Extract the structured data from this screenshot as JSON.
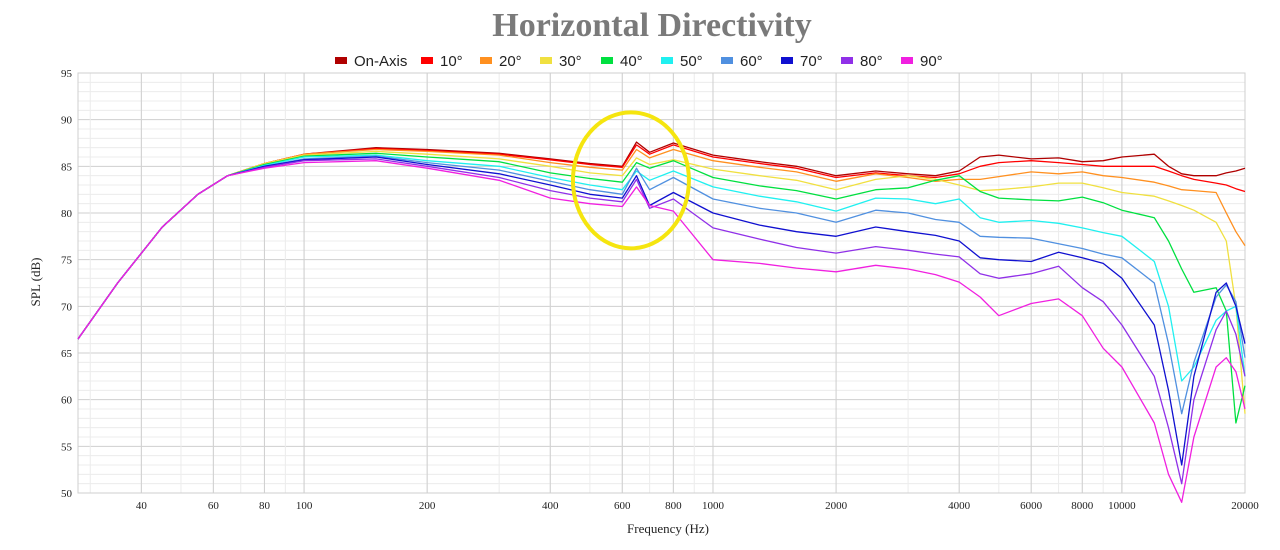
{
  "chart_data": {
    "type": "line",
    "title": "Horizontal Directivity",
    "xlabel": "Frequency (Hz)",
    "ylabel": "SPL (dB)",
    "xscale": "log",
    "xlim": [
      28,
      20000
    ],
    "ylim": [
      50,
      95
    ],
    "xticks": [
      40,
      60,
      80,
      100,
      200,
      400,
      600,
      800,
      1000,
      2000,
      4000,
      6000,
      8000,
      10000,
      20000
    ],
    "xtick_labels": [
      "40",
      "60",
      "80",
      "100",
      "200",
      "400",
      "600",
      "800",
      "1000",
      "2000",
      "4000",
      "6000",
      "8000",
      "10000",
      "20000"
    ],
    "yticks": [
      50,
      55,
      60,
      65,
      70,
      75,
      80,
      85,
      90,
      95
    ],
    "ytick_labels": [
      "50",
      "55",
      "60",
      "65",
      "70",
      "75",
      "80",
      "85",
      "90",
      "95"
    ],
    "grid": true,
    "legend_position": "top-center",
    "annotation": {
      "shape": "ellipse",
      "color": "#f5e50f",
      "center_freq": 630,
      "center_db": 83.5
    },
    "x": [
      28,
      35,
      45,
      55,
      65,
      80,
      100,
      150,
      200,
      300,
      400,
      500,
      600,
      650,
      700,
      800,
      1000,
      1300,
      1600,
      2000,
      2500,
      3000,
      3500,
      4000,
      4500,
      5000,
      6000,
      7000,
      8000,
      9000,
      10000,
      12000,
      13000,
      14000,
      15000,
      17000,
      18000,
      19000,
      20000
    ],
    "series": [
      {
        "name": "On-Axis",
        "color": "#b00000",
        "values": [
          66.5,
          72.5,
          78.5,
          82.0,
          84.0,
          85.3,
          86.3,
          87.0,
          86.8,
          86.4,
          85.8,
          85.3,
          85.0,
          87.6,
          86.5,
          87.5,
          86.2,
          85.5,
          85.0,
          84.0,
          84.5,
          84.2,
          84.0,
          84.5,
          86.0,
          86.2,
          85.8,
          85.9,
          85.5,
          85.6,
          86.0,
          86.3,
          85.0,
          84.2,
          84.0,
          84.0,
          84.3,
          84.5,
          84.8
        ]
      },
      {
        "name": "10°",
        "color": "#ff0000",
        "values": [
          66.5,
          72.5,
          78.5,
          82.0,
          84.0,
          85.3,
          86.3,
          86.9,
          86.7,
          86.3,
          85.7,
          85.2,
          84.9,
          87.3,
          86.3,
          87.3,
          86.0,
          85.3,
          84.8,
          83.8,
          84.3,
          84.0,
          83.8,
          84.2,
          85.0,
          85.4,
          85.6,
          85.4,
          85.2,
          85.0,
          85.0,
          85.0,
          84.5,
          84.0,
          83.6,
          83.2,
          83.0,
          82.6,
          82.3
        ]
      },
      {
        "name": "20°",
        "color": "#ff9020",
        "values": [
          66.5,
          72.5,
          78.5,
          82.0,
          84.0,
          85.3,
          86.3,
          86.8,
          86.6,
          86.2,
          85.4,
          84.9,
          84.6,
          86.8,
          85.9,
          86.8,
          85.6,
          84.9,
          84.4,
          83.4,
          84.2,
          83.8,
          83.4,
          83.6,
          83.6,
          83.9,
          84.4,
          84.2,
          84.4,
          84.0,
          83.8,
          83.3,
          82.9,
          82.5,
          82.4,
          82.2,
          80.0,
          78.0,
          76.5
        ]
      },
      {
        "name": "30°",
        "color": "#f0e040",
        "values": [
          66.5,
          72.5,
          78.5,
          82.0,
          84.0,
          85.3,
          86.2,
          86.6,
          86.3,
          85.8,
          85.0,
          84.3,
          84.0,
          85.9,
          85.2,
          85.7,
          84.7,
          84.0,
          83.5,
          82.5,
          83.6,
          84.0,
          83.6,
          83.0,
          82.4,
          82.5,
          82.8,
          83.2,
          83.2,
          82.7,
          82.2,
          81.8,
          81.3,
          80.8,
          80.3,
          79.0,
          77.0,
          70.0,
          58.5
        ]
      },
      {
        "name": "40°",
        "color": "#00e040",
        "values": [
          66.5,
          72.5,
          78.5,
          82.0,
          84.0,
          85.2,
          86.1,
          86.4,
          86.0,
          85.5,
          84.3,
          83.7,
          83.3,
          85.4,
          84.8,
          85.6,
          83.8,
          82.9,
          82.4,
          81.5,
          82.5,
          82.7,
          83.5,
          84.0,
          82.3,
          81.6,
          81.4,
          81.3,
          81.7,
          81.1,
          80.3,
          79.5,
          77.0,
          74.0,
          71.5,
          72.0,
          69.5,
          57.5,
          61.5
        ]
      },
      {
        "name": "50°",
        "color": "#20f0f0",
        "values": [
          66.5,
          72.5,
          78.5,
          82.0,
          84.0,
          85.1,
          86.0,
          86.2,
          85.6,
          85.0,
          83.8,
          83.0,
          82.5,
          84.5,
          83.5,
          84.5,
          82.8,
          81.8,
          81.2,
          80.2,
          81.6,
          81.5,
          81.0,
          81.5,
          79.5,
          79.0,
          79.2,
          78.9,
          78.4,
          77.9,
          77.5,
          74.8,
          70.0,
          62.0,
          63.5,
          68.5,
          69.5,
          70.0,
          62.5
        ]
      },
      {
        "name": "60°",
        "color": "#5090e0",
        "values": [
          66.5,
          72.5,
          78.5,
          82.0,
          84.0,
          85.0,
          85.8,
          86.1,
          85.4,
          84.6,
          83.4,
          82.5,
          82.0,
          84.8,
          82.5,
          83.8,
          81.5,
          80.5,
          80.0,
          79.0,
          80.3,
          80.0,
          79.3,
          79.0,
          77.5,
          77.4,
          77.3,
          76.7,
          76.2,
          75.6,
          75.2,
          72.5,
          66.0,
          58.5,
          64.0,
          71.0,
          72.3,
          70.5,
          64.5
        ]
      },
      {
        "name": "70°",
        "color": "#1010d0",
        "values": [
          66.5,
          72.5,
          78.5,
          82.0,
          84.0,
          85.0,
          85.7,
          86.0,
          85.2,
          84.2,
          83.0,
          82.0,
          81.6,
          84.0,
          80.8,
          82.2,
          80.0,
          78.7,
          78.0,
          77.5,
          78.5,
          78.0,
          77.6,
          77.0,
          75.2,
          75.0,
          74.8,
          75.8,
          75.2,
          74.6,
          73.0,
          68.0,
          61.0,
          53.0,
          62.5,
          71.5,
          72.5,
          70.0,
          66.0
        ]
      },
      {
        "name": "80°",
        "color": "#9030e8",
        "values": [
          66.5,
          72.5,
          78.5,
          82.0,
          84.0,
          84.9,
          85.6,
          85.8,
          85.0,
          83.8,
          82.4,
          81.6,
          81.2,
          83.6,
          80.5,
          81.5,
          78.4,
          77.2,
          76.3,
          75.7,
          76.4,
          76.0,
          75.6,
          75.3,
          73.5,
          73.0,
          73.5,
          74.3,
          72.0,
          70.5,
          68.0,
          62.5,
          57.0,
          51.0,
          60.0,
          67.5,
          69.5,
          67.0,
          62.5
        ]
      },
      {
        "name": "90°",
        "color": "#f020e0",
        "values": [
          66.5,
          72.5,
          78.5,
          82.0,
          84.0,
          84.8,
          85.4,
          85.6,
          84.8,
          83.5,
          81.6,
          81.0,
          80.7,
          82.8,
          80.8,
          80.2,
          75.0,
          74.6,
          74.1,
          73.7,
          74.4,
          74.0,
          73.4,
          72.6,
          71.0,
          69.0,
          70.3,
          70.8,
          69.0,
          65.5,
          63.5,
          57.5,
          52.0,
          49.0,
          56.0,
          63.5,
          64.5,
          63.0,
          59.0
        ]
      }
    ]
  }
}
